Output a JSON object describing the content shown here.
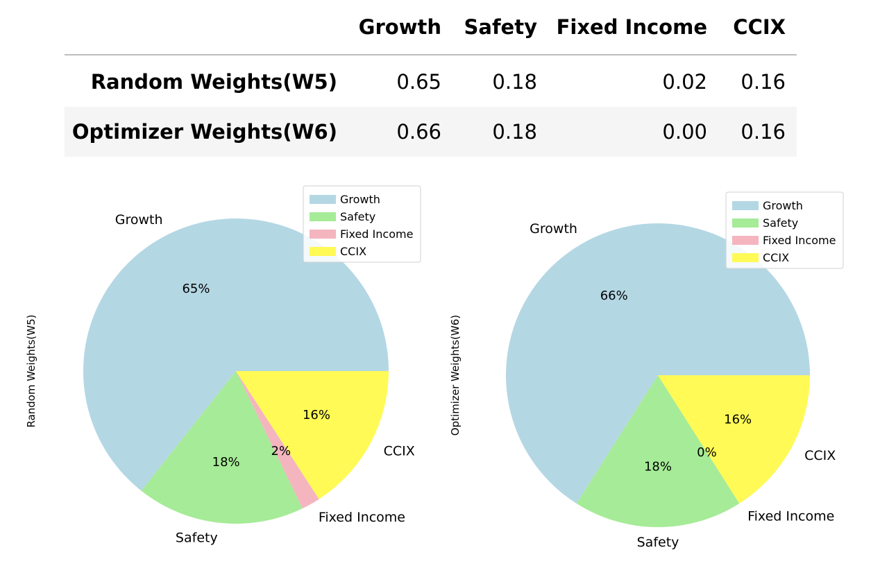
{
  "table": {
    "columns": [
      "Growth",
      "Safety",
      "Fixed Income",
      "CCIX"
    ],
    "rows": [
      {
        "label": "Random Weights(W5)",
        "values": [
          "0.65",
          "0.18",
          "0.02",
          "0.16"
        ]
      },
      {
        "label": "Optimizer Weights(W6)",
        "values": [
          "0.66",
          "0.18",
          "0.00",
          "0.16"
        ]
      }
    ]
  },
  "colors": {
    "Growth": "#b4d7e4",
    "Safety": "#a6eb97",
    "Fixed Income": "#f4b5bf",
    "CCIX": "#fffa55"
  },
  "chart_data": [
    {
      "type": "pie",
      "ylabel": "Random Weights(W5)",
      "labels": [
        "Growth",
        "Safety",
        "Fixed Income",
        "CCIX"
      ],
      "values": [
        0.65,
        0.18,
        0.02,
        0.16
      ],
      "pct_labels": [
        "65%",
        "18%",
        "2%",
        "16%"
      ],
      "start_angle_deg": 0,
      "direction": "counterclockwise",
      "legend": {
        "placement": "upper-right",
        "entries": [
          "Growth",
          "Safety",
          "Fixed Income",
          "CCIX"
        ]
      }
    },
    {
      "type": "pie",
      "ylabel": "Optimizer Weights(W6)",
      "labels": [
        "Growth",
        "Safety",
        "Fixed Income",
        "CCIX"
      ],
      "values": [
        0.66,
        0.18,
        0.0,
        0.16
      ],
      "pct_labels": [
        "66%",
        "18%",
        "0%",
        "16%"
      ],
      "start_angle_deg": 0,
      "direction": "counterclockwise",
      "legend": {
        "placement": "upper-right",
        "entries": [
          "Growth",
          "Safety",
          "Fixed Income",
          "CCIX"
        ]
      }
    }
  ]
}
